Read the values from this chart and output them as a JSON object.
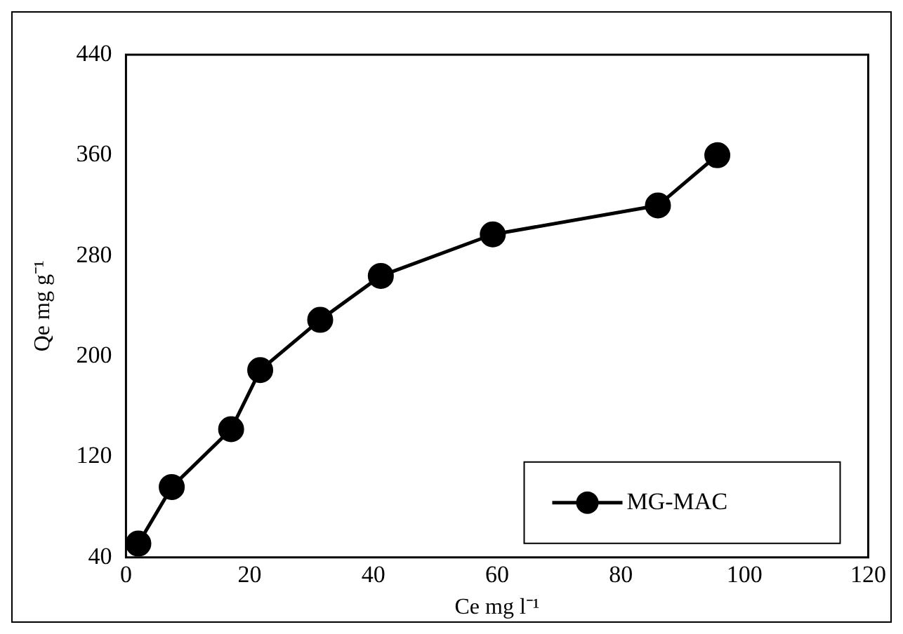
{
  "chart_data": {
    "type": "line",
    "xlabel": "Ce mg l⁻¹",
    "ylabel": "Qe mg g⁻¹",
    "xlim": [
      0,
      120
    ],
    "xticks": [
      0,
      20,
      40,
      60,
      80,
      100,
      120
    ],
    "ylim": [
      40,
      440
    ],
    "yticks": [
      40,
      120,
      200,
      280,
      360,
      440
    ],
    "series": [
      {
        "name": "MG-MAC",
        "color": "#000000",
        "x": [
          2,
          7.4,
          17,
          21.7,
          31.4,
          41.2,
          59.3,
          86,
          95.6
        ],
        "values": [
          51,
          96,
          142,
          189,
          229,
          264,
          297,
          320,
          360
        ]
      }
    ],
    "marker": "circle",
    "line_style": "solid",
    "legend": "bottom right",
    "grid": false
  }
}
